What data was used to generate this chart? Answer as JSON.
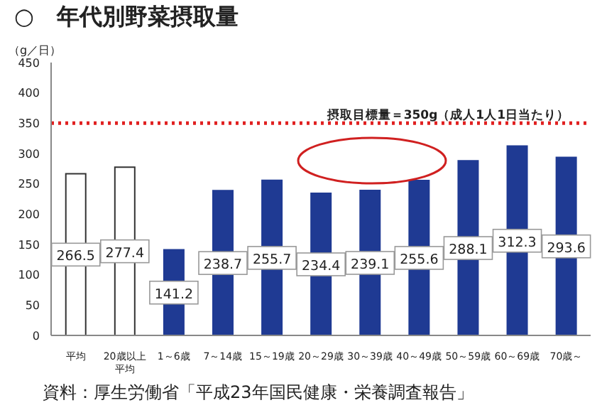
{
  "chart_data": {
    "type": "bar",
    "title": "○　年代別野菜摂取量",
    "ylabel": "（g／日）",
    "categories": [
      "平均",
      "20歳以上平均",
      "1～6歳",
      "7～14歳",
      "15～19歳",
      "20～29歳",
      "30～39歳",
      "40～49歳",
      "50～59歳",
      "60～69歳",
      "70歳～"
    ],
    "values": [
      266.5,
      277.4,
      141.2,
      238.7,
      255.7,
      234.4,
      239.1,
      255.6,
      288.1,
      312.3,
      293.6
    ],
    "colors": [
      "#ffffff",
      "#ffffff",
      "#1f3a93",
      "#1f3a93",
      "#1f3a93",
      "#1f3a93",
      "#1f3a93",
      "#1f3a93",
      "#1f3a93",
      "#1f3a93",
      "#1f3a93"
    ],
    "data_labels": true,
    "ylim": [
      0,
      450
    ],
    "yticks": [
      0,
      50,
      100,
      150,
      200,
      250,
      300,
      350,
      400,
      450
    ],
    "grid": false,
    "legend": false,
    "ref_lines": [
      {
        "axis": "y",
        "value": 350,
        "label": "摂取目標量＝350g（成人1人1日当たり）",
        "color": "#e02020",
        "line_style": "dotted"
      }
    ],
    "annotations": [
      "資料：厚生労働省「平成23年国民健康・栄養調査報告」"
    ]
  }
}
